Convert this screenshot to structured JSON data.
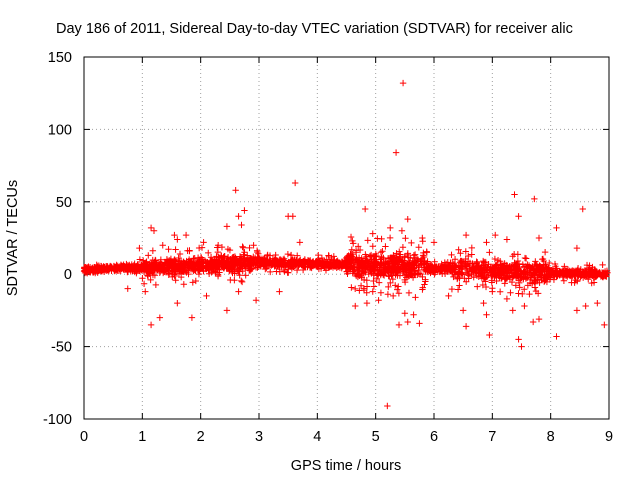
{
  "chart_data": {
    "type": "scatter",
    "title": "Day 186 of 2011, Sidereal Day-to-day VTEC variation (SDTVAR) for receiver alic",
    "xlabel": "GPS time / hours",
    "ylabel": "SDTVAR / TECUs",
    "xlim": [
      0,
      9
    ],
    "ylim": [
      -100,
      150
    ],
    "x_ticks": [
      0,
      1,
      2,
      3,
      4,
      5,
      6,
      7,
      8,
      9
    ],
    "y_ticks": [
      -100,
      -50,
      0,
      50,
      100,
      150
    ],
    "x_tick_labels": [
      "0",
      "1",
      "2",
      "3",
      "4",
      "5",
      "6",
      "7",
      "8",
      "9"
    ],
    "y_tick_labels": [
      "-100",
      "-50",
      "0",
      "50",
      "100",
      "150"
    ],
    "grid": true,
    "marker": "+",
    "color": "#ff0000",
    "series": [
      {
        "name": "SDTVAR",
        "trend": [
          [
            0,
            3
          ],
          [
            0.5,
            4
          ],
          [
            1,
            4.5
          ],
          [
            1.5,
            5
          ],
          [
            2,
            6
          ],
          [
            2.5,
            7
          ],
          [
            3,
            8
          ],
          [
            3.5,
            7.5
          ],
          [
            4,
            7
          ],
          [
            4.5,
            6.5
          ],
          [
            5,
            6
          ],
          [
            5.5,
            5
          ],
          [
            6,
            4
          ],
          [
            6.5,
            3.5
          ],
          [
            7,
            3
          ],
          [
            7.5,
            2
          ],
          [
            8,
            1
          ],
          [
            8.5,
            0.5
          ],
          [
            9,
            0
          ]
        ],
        "outliers": [
          [
            5.47,
            132
          ],
          [
            5.35,
            84
          ],
          [
            3.62,
            63
          ],
          [
            2.6,
            58
          ],
          [
            7.38,
            55
          ],
          [
            7.72,
            52
          ],
          [
            8.55,
            45
          ],
          [
            4.82,
            45
          ],
          [
            2.75,
            44
          ],
          [
            2.65,
            40
          ],
          [
            3.5,
            40
          ],
          [
            3.58,
            40
          ],
          [
            7.45,
            40
          ],
          [
            5.55,
            38
          ],
          [
            2.7,
            34
          ],
          [
            1.15,
            32
          ],
          [
            1.2,
            30
          ],
          [
            2.45,
            33
          ],
          [
            8.1,
            32
          ],
          [
            5.25,
            32
          ],
          [
            5.45,
            30
          ],
          [
            4.95,
            28
          ],
          [
            1.55,
            27
          ],
          [
            1.75,
            27
          ],
          [
            1.6,
            24
          ],
          [
            6.55,
            27
          ],
          [
            7.05,
            27
          ],
          [
            7.25,
            24
          ],
          [
            7.8,
            25
          ],
          [
            4.6,
            23
          ],
          [
            3.7,
            22
          ],
          [
            6.0,
            22
          ],
          [
            2.05,
            22
          ],
          [
            5.8,
            25
          ],
          [
            6.9,
            22
          ],
          [
            8.45,
            18
          ],
          [
            0.95,
            18
          ],
          [
            1.35,
            20
          ],
          [
            2.3,
            20
          ],
          [
            5.2,
            -91
          ],
          [
            6.95,
            -42
          ],
          [
            7.45,
            -45
          ],
          [
            7.5,
            -50
          ],
          [
            8.1,
            -43
          ],
          [
            8.92,
            -35
          ],
          [
            1.15,
            -35
          ],
          [
            1.3,
            -30
          ],
          [
            1.85,
            -30
          ],
          [
            5.4,
            -35
          ],
          [
            5.55,
            -33
          ],
          [
            5.75,
            -34
          ],
          [
            6.55,
            -36
          ],
          [
            7.7,
            -33
          ],
          [
            7.8,
            -31
          ],
          [
            2.45,
            -25
          ],
          [
            5.5,
            -27
          ],
          [
            6.5,
            -25
          ],
          [
            7.55,
            -22
          ],
          [
            8.8,
            -20
          ],
          [
            4.65,
            -22
          ],
          [
            4.85,
            -20
          ],
          [
            5.05,
            -18
          ],
          [
            2.95,
            -18
          ],
          [
            2.1,
            -15
          ],
          [
            1.05,
            -12
          ],
          [
            0.75,
            -10
          ],
          [
            3.35,
            -12
          ],
          [
            6.25,
            -15
          ],
          [
            7.25,
            -17
          ],
          [
            5.3,
            -15
          ],
          [
            4.95,
            -12
          ],
          [
            6.85,
            -20
          ],
          [
            8.45,
            -25
          ],
          [
            8.6,
            -22
          ],
          [
            7.0,
            -12
          ],
          [
            1.6,
            -20
          ],
          [
            2.65,
            -12
          ],
          [
            5.65,
            -28
          ],
          [
            4.75,
            -8
          ],
          [
            6.9,
            -28
          ],
          [
            7.35,
            -25
          ]
        ]
      }
    ]
  }
}
